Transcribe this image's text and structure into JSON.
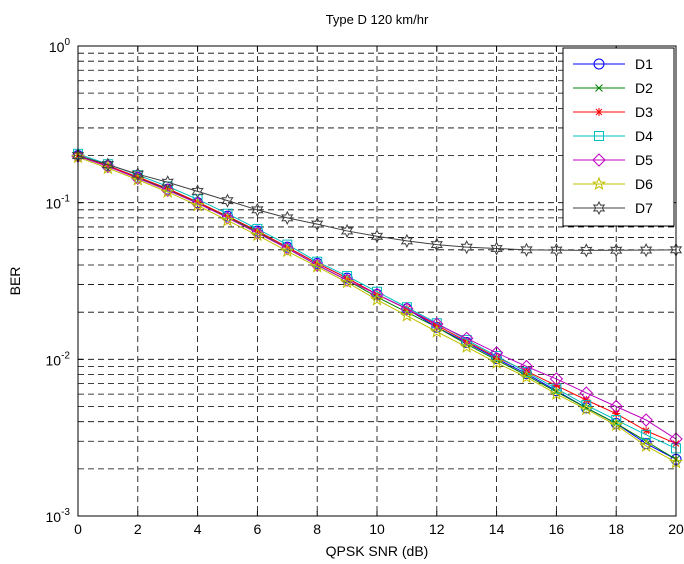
{
  "chart_data": {
    "type": "line",
    "title": "Type D  120 km/hr",
    "xlabel": "QPSK SNR (dB)",
    "ylabel": "BER",
    "xlim": [
      0,
      20
    ],
    "ylim": [
      0.001,
      1
    ],
    "yscale": "log",
    "grid": true,
    "legend_position": "top-right",
    "x_ticks": [
      0,
      2,
      4,
      6,
      8,
      10,
      12,
      14,
      16,
      18,
      20
    ],
    "x_tick_labels": [
      "0",
      "2",
      "4",
      "6",
      "8",
      "10",
      "12",
      "14",
      "16",
      "18",
      "20"
    ],
    "y_ticks": [
      {
        "value": 0.001,
        "base": "10",
        "exp": "-3"
      },
      {
        "value": 0.01,
        "base": "10",
        "exp": "-2"
      },
      {
        "value": 0.1,
        "base": "10",
        "exp": "-1"
      },
      {
        "value": 1,
        "base": "10",
        "exp": "0"
      }
    ],
    "x": [
      0,
      1,
      2,
      3,
      4,
      5,
      6,
      7,
      8,
      9,
      10,
      11,
      12,
      13,
      14,
      15,
      16,
      17,
      18,
      19,
      20
    ],
    "series": [
      {
        "name": "D1",
        "color": "#0000ff",
        "marker": "circle",
        "values": [
          0.2,
          0.172,
          0.145,
          0.122,
          0.1,
          0.082,
          0.066,
          0.052,
          0.041,
          0.033,
          0.026,
          0.021,
          0.016,
          0.0128,
          0.0101,
          0.0081,
          0.0063,
          0.0049,
          0.0039,
          0.0029,
          0.0023
        ]
      },
      {
        "name": "D2",
        "color": "#008000",
        "marker": "x",
        "values": [
          0.2,
          0.171,
          0.144,
          0.121,
          0.1,
          0.081,
          0.065,
          0.051,
          0.04,
          0.032,
          0.025,
          0.02,
          0.016,
          0.0125,
          0.0099,
          0.0079,
          0.0062,
          0.0049,
          0.0039,
          0.003,
          0.0023
        ]
      },
      {
        "name": "D3",
        "color": "#ff0000",
        "marker": "star",
        "values": [
          0.2,
          0.172,
          0.146,
          0.123,
          0.101,
          0.082,
          0.066,
          0.052,
          0.041,
          0.033,
          0.026,
          0.021,
          0.0165,
          0.013,
          0.0103,
          0.0084,
          0.0068,
          0.0055,
          0.0045,
          0.0035,
          0.0029
        ]
      },
      {
        "name": "D4",
        "color": "#00bfbf",
        "marker": "square",
        "values": [
          0.205,
          0.176,
          0.15,
          0.127,
          0.105,
          0.085,
          0.068,
          0.054,
          0.042,
          0.034,
          0.027,
          0.0215,
          0.017,
          0.0133,
          0.0105,
          0.0083,
          0.0065,
          0.0051,
          0.0041,
          0.0033,
          0.0027
        ]
      },
      {
        "name": "D5",
        "color": "#bf00bf",
        "marker": "diamond",
        "values": [
          0.198,
          0.17,
          0.143,
          0.12,
          0.099,
          0.08,
          0.064,
          0.051,
          0.04,
          0.032,
          0.026,
          0.021,
          0.0168,
          0.0136,
          0.011,
          0.009,
          0.0075,
          0.0061,
          0.005,
          0.0041,
          0.0031
        ]
      },
      {
        "name": "D6",
        "color": "#bfbf00",
        "marker": "star",
        "values": [
          0.195,
          0.166,
          0.14,
          0.117,
          0.096,
          0.077,
          0.062,
          0.049,
          0.039,
          0.031,
          0.024,
          0.019,
          0.015,
          0.012,
          0.0095,
          0.0077,
          0.006,
          0.0048,
          0.0038,
          0.0028,
          0.0022
        ]
      },
      {
        "name": "D7",
        "color": "#404040",
        "marker": "hexagram",
        "values": [
          0.2,
          0.175,
          0.152,
          0.135,
          0.118,
          0.103,
          0.09,
          0.08,
          0.073,
          0.066,
          0.061,
          0.057,
          0.054,
          0.052,
          0.051,
          0.05,
          0.0498,
          0.0496,
          0.0497,
          0.0498,
          0.05
        ]
      }
    ]
  }
}
